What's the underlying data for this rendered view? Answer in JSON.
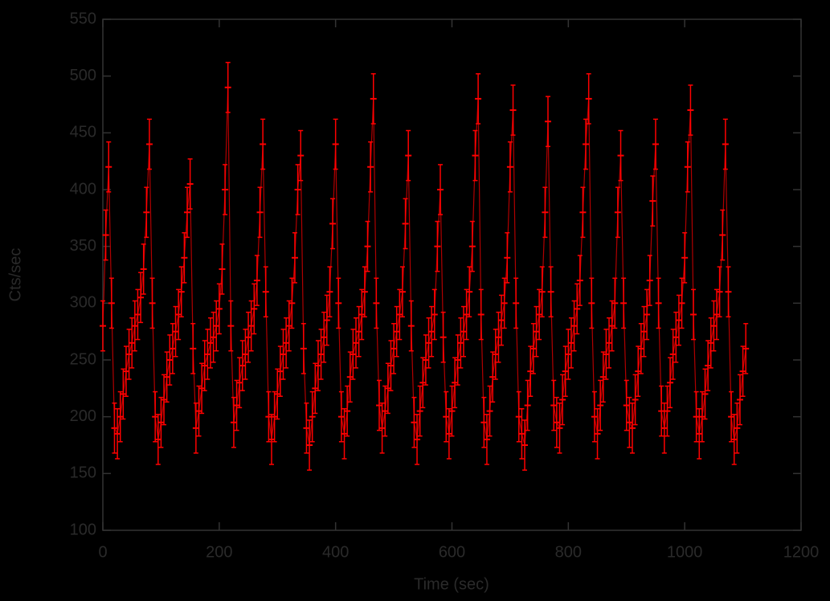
{
  "chart_data": {
    "type": "errorbar",
    "xlabel": "Time (sec)",
    "ylabel": "Cts/sec",
    "xlim": [
      0,
      1200
    ],
    "ylim": [
      100,
      550
    ],
    "xticks": [
      0,
      200,
      400,
      600,
      800,
      1000,
      1200
    ],
    "yticks": [
      100,
      150,
      200,
      250,
      300,
      350,
      400,
      450,
      500,
      550
    ],
    "color": "#ff0000",
    "error": 22,
    "x": [
      0,
      5,
      10,
      15,
      20,
      25,
      30,
      35,
      40,
      45,
      50,
      55,
      60,
      65,
      70,
      75,
      80,
      85,
      90,
      95,
      100,
      105,
      110,
      115,
      120,
      125,
      130,
      135,
      140,
      145,
      150,
      155,
      160,
      165,
      170,
      175,
      180,
      185,
      190,
      195,
      200,
      205,
      210,
      215,
      220,
      225,
      230,
      235,
      240,
      245,
      250,
      255,
      260,
      265,
      270,
      275,
      280,
      285,
      290,
      295,
      300,
      305,
      310,
      315,
      320,
      325,
      330,
      335,
      340,
      345,
      350,
      355,
      360,
      365,
      370,
      375,
      380,
      385,
      390,
      395,
      400,
      405,
      410,
      415,
      420,
      425,
      430,
      435,
      440,
      445,
      450,
      455,
      460,
      465,
      470,
      475,
      480,
      485,
      490,
      495,
      500,
      505,
      510,
      515,
      520,
      525,
      530,
      535,
      540,
      545,
      550,
      555,
      560,
      565,
      570,
      575,
      580,
      585,
      590,
      595,
      600,
      605,
      610,
      615,
      620,
      625,
      630,
      635,
      640,
      645,
      650,
      655,
      660,
      665,
      670,
      675,
      680,
      685,
      690,
      695,
      700,
      705,
      710,
      715,
      720,
      725,
      730,
      735,
      740,
      745,
      750,
      755,
      760,
      765,
      770,
      775,
      780,
      785,
      790,
      795,
      800,
      805,
      810,
      815,
      820,
      825,
      830,
      835,
      840,
      845,
      850,
      855,
      860,
      865,
      870,
      875,
      880,
      885,
      890,
      895,
      900,
      905,
      910,
      915,
      920,
      925,
      930,
      935,
      940,
      945,
      950,
      955,
      960,
      965,
      970,
      975,
      980,
      985,
      990,
      995,
      1000,
      1005,
      1010,
      1015,
      1020,
      1025,
      1030,
      1035,
      1040,
      1045,
      1050,
      1055,
      1060,
      1065,
      1070,
      1075,
      1080,
      1085,
      1090,
      1095,
      1100,
      1105
    ],
    "values": [
      280,
      360,
      420,
      300,
      190,
      185,
      200,
      220,
      240,
      255,
      265,
      280,
      290,
      305,
      330,
      380,
      440,
      300,
      200,
      180,
      195,
      215,
      235,
      250,
      260,
      275,
      290,
      310,
      340,
      380,
      405,
      260,
      190,
      205,
      225,
      245,
      255,
      265,
      270,
      280,
      295,
      330,
      400,
      490,
      280,
      195,
      210,
      230,
      245,
      255,
      270,
      280,
      295,
      320,
      380,
      440,
      310,
      200,
      180,
      200,
      220,
      240,
      255,
      265,
      280,
      300,
      340,
      400,
      430,
      260,
      190,
      175,
      200,
      225,
      245,
      255,
      270,
      285,
      310,
      370,
      440,
      300,
      200,
      185,
      205,
      235,
      255,
      265,
      275,
      290,
      310,
      350,
      420,
      480,
      300,
      210,
      190,
      205,
      225,
      245,
      260,
      275,
      290,
      310,
      370,
      430,
      280,
      195,
      180,
      205,
      230,
      250,
      265,
      275,
      290,
      350,
      400,
      270,
      200,
      185,
      205,
      230,
      250,
      265,
      275,
      290,
      310,
      350,
      430,
      480,
      290,
      195,
      180,
      205,
      235,
      255,
      270,
      285,
      300,
      340,
      420,
      470,
      300,
      200,
      185,
      175,
      210,
      240,
      260,
      275,
      290,
      310,
      380,
      460,
      310,
      210,
      195,
      190,
      215,
      240,
      255,
      265,
      280,
      295,
      320,
      380,
      440,
      480,
      300,
      200,
      185,
      210,
      235,
      255,
      265,
      280,
      300,
      380,
      430,
      300,
      210,
      195,
      190,
      215,
      240,
      260,
      275,
      290,
      320,
      390,
      440,
      300,
      205,
      190,
      205,
      230,
      255,
      270,
      285,
      300,
      340,
      420,
      470,
      290,
      200,
      185,
      200,
      220,
      245,
      265,
      280,
      290,
      310,
      360,
      440,
      310,
      200,
      180,
      190,
      215,
      240,
      260
    ]
  }
}
